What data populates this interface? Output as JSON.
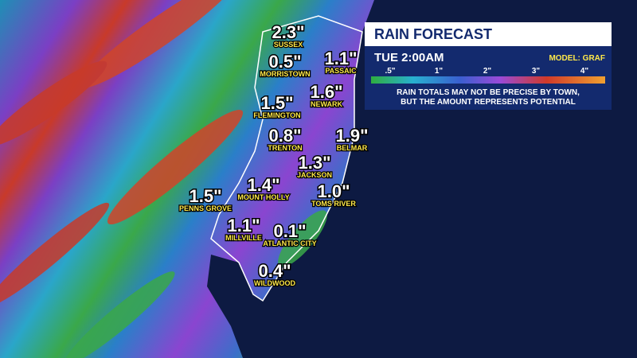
{
  "panel": {
    "title": "RAIN FORECAST",
    "time": "TUE  2:00AM",
    "model": "MODEL: GRAF",
    "legend_labels": [
      ".5\"",
      "1\"",
      "2\"",
      "3\"",
      "4\""
    ],
    "disclaimer": [
      "RAIN TOTALS MAY NOT BE PRECISE BY TOWN,",
      "BUT THE AMOUNT REPRESENTS POTENTIAL"
    ]
  },
  "towns": [
    {
      "name": "SUSSEX",
      "value": "2.3\""
    },
    {
      "name": "MORRISTOWN",
      "value": "0.5\""
    },
    {
      "name": "PASSAIC",
      "value": "1.1\""
    },
    {
      "name": "NEWARK",
      "value": "1.6\""
    },
    {
      "name": "FLEMINGTON",
      "value": "1.5\""
    },
    {
      "name": "TRENTON",
      "value": "0.8\""
    },
    {
      "name": "BELMAR",
      "value": "1.9\""
    },
    {
      "name": "JACKSON",
      "value": "1.3\""
    },
    {
      "name": "MOUNT HOLLY",
      "value": "1.4\""
    },
    {
      "name": "TOMS RIVER",
      "value": "1.0\""
    },
    {
      "name": "PENNS GROVE",
      "value": "1.5\""
    },
    {
      "name": "MILLVILLE",
      "value": "1.1\""
    },
    {
      "name": "ATLANTIC CITY",
      "value": "0.1\""
    },
    {
      "name": "WILDWOOD",
      "value": "0.4\""
    }
  ]
}
